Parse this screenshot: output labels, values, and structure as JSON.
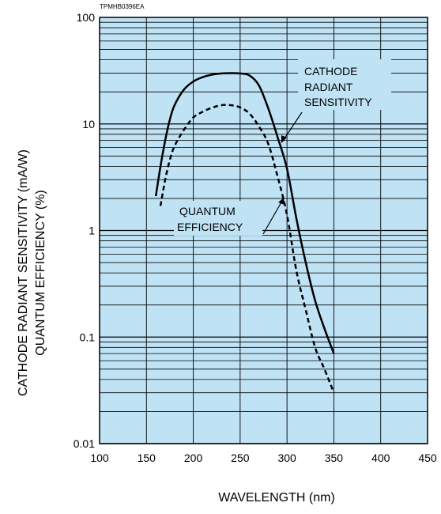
{
  "figure_code": "TPMHB0396EA",
  "chart_data": {
    "type": "line",
    "xlabel": "WAVELENGTH  (nm)",
    "ylabel_lines": [
      "CATHODE RADIANT SENSITIVITY (mA/W)",
      "QUANTUM EFFICIENCY (%)"
    ],
    "x_scale": "linear",
    "y_scale": "log",
    "xlim": [
      100,
      450
    ],
    "ylim": [
      0.01,
      100
    ],
    "x_ticks": [
      "100",
      "150",
      "200",
      "250",
      "300",
      "350",
      "400",
      "450"
    ],
    "y_ticks": [
      "100",
      "10",
      "1",
      "0.1",
      "0.01"
    ],
    "grid": true,
    "plot_background": "#bfe3f5",
    "series": [
      {
        "name_lines": [
          "CATHODE",
          "RADIANT",
          "SENSITIVITY"
        ],
        "style": "solid",
        "x": [
          160,
          165,
          170,
          175,
          180,
          190,
          200,
          210,
          220,
          230,
          240,
          250,
          260,
          270,
          280,
          290,
          300,
          310,
          320,
          330,
          340,
          350
        ],
        "y": [
          2.1,
          4.0,
          7.0,
          11,
          15,
          21,
          25,
          27.5,
          29,
          29.8,
          30,
          29.8,
          28.5,
          23,
          14,
          7.5,
          3.8,
          1.3,
          0.5,
          0.22,
          0.12,
          0.07
        ]
      },
      {
        "name_lines": [
          "QUANTUM",
          "EFFICIENCY"
        ],
        "style": "dashed",
        "x": [
          165,
          170,
          175,
          180,
          190,
          200,
          210,
          220,
          230,
          240,
          250,
          260,
          270,
          280,
          290,
          300,
          310,
          320,
          330,
          340,
          350
        ],
        "y": [
          1.7,
          3.0,
          4.6,
          6.2,
          8.8,
          11.5,
          13,
          14.2,
          15,
          15,
          14.3,
          12.5,
          9.5,
          6.5,
          3.2,
          1.4,
          0.42,
          0.18,
          0.08,
          0.05,
          0.03
        ]
      }
    ]
  }
}
